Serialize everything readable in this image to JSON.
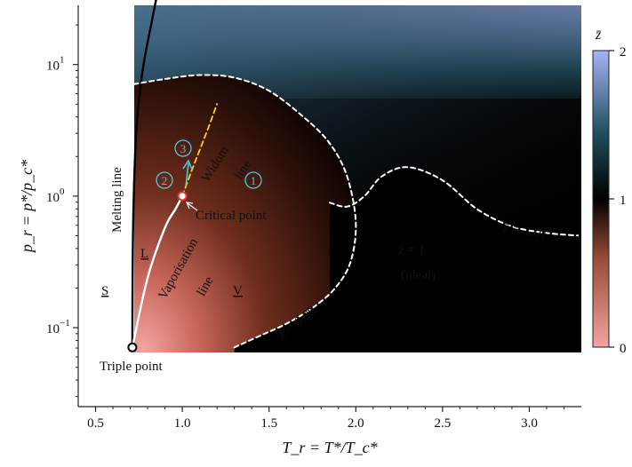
{
  "chart_data": {
    "type": "heatmap",
    "title": "",
    "xlabel": "T_r = T*/T_c*",
    "ylabel": "p_r = p*/p_c*",
    "xlim": [
      0.4,
      3.3
    ],
    "ylim_log10": [
      -1.6,
      1.45
    ],
    "yscale": "log",
    "x_ticks": [
      0.5,
      1.0,
      1.5,
      2.0,
      2.5,
      3.0
    ],
    "x_tick_labels": [
      "0.5",
      "1.0",
      "1.5",
      "2.0",
      "2.5",
      "3.0"
    ],
    "y_ticks_log10": [
      -1,
      0,
      1
    ],
    "y_tick_labels": [
      {
        "base": "10",
        "exp": "−1"
      },
      {
        "base": "10",
        "exp": "0"
      },
      {
        "base": "10",
        "exp": "1"
      }
    ],
    "colorbar": {
      "label": "z̄",
      "ticks": [
        0,
        1,
        2
      ],
      "tick_labels": [
        "0",
        "1",
        "2"
      ],
      "colors": {
        "low": "#f4a3a3",
        "mid_low": "#4a1a10",
        "one": "#000000",
        "mid_high": "#1e4e5e",
        "high": "#a7b4f7"
      }
    },
    "curves": {
      "melting_line": {
        "color": "#000000",
        "style": "solid",
        "x": [
          0.712,
          0.714,
          0.72,
          0.735,
          0.76,
          0.79,
          0.82,
          0.85
        ],
        "log10_p": [
          -1.15,
          -0.5,
          0,
          0.5,
          0.85,
          1.1,
          1.3,
          1.5
        ]
      },
      "vaporisation_line": {
        "color": "#ffffff",
        "style": "solid",
        "x": [
          0.712,
          0.8,
          0.9,
          0.96,
          1.0
        ],
        "log10_p": [
          -1.15,
          -0.62,
          -0.24,
          -0.1,
          0
        ]
      },
      "z_0_99": {
        "label": "z̄ = 0.99",
        "color": "#ffffff",
        "style": "dashed",
        "x": [
          0.72,
          0.9,
          1.1,
          1.3,
          1.5,
          1.7,
          1.85,
          1.95,
          2.0,
          1.97,
          1.88,
          1.75,
          1.6,
          1.45,
          1.3
        ],
        "log10_p": [
          0.85,
          0.89,
          0.92,
          0.9,
          0.8,
          0.6,
          0.4,
          0.15,
          -0.2,
          -0.5,
          -0.7,
          -0.85,
          -0.97,
          -1.06,
          -1.15
        ]
      },
      "z_1_01": {
        "label": "z̄ = 1.01",
        "color": "#ffffff",
        "style": "dashed",
        "x": [
          1.85,
          1.95,
          2.05,
          2.15,
          2.3,
          2.5,
          2.7,
          2.9,
          3.1,
          3.28
        ],
        "log10_p": [
          -0.05,
          -0.08,
          0,
          0.15,
          0.22,
          0.12,
          -0.1,
          -0.23,
          -0.28,
          -0.3
        ]
      },
      "widom_line": {
        "label": "Widom line",
        "color": "#ffd21a",
        "style": "dashed",
        "x": [
          1.0,
          1.05,
          1.1,
          1.15,
          1.2
        ],
        "log10_p": [
          0,
          0.18,
          0.35,
          0.52,
          0.7
        ]
      }
    },
    "points": {
      "triple_point": {
        "label": "Triple point",
        "x": 0.712,
        "log10_p": -1.15
      },
      "critical_point": {
        "label": "Critical point",
        "x": 1.0,
        "log10_p": 0
      }
    },
    "annotations": {
      "melting_line": "Melting line",
      "vaporisation_line": "Vaporisation line",
      "vaporisation_word1": "Vaporisation",
      "vaporisation_word2": "line",
      "widom_word1": "Widom",
      "widom_word2": "line",
      "phase_s": "S",
      "phase_l": "L",
      "phase_v": "V",
      "ideal_line1": "z̄ = 1",
      "ideal_line2": "(ideal)",
      "z_low": "z̄ = 0.99",
      "z_high": "z̄ = 1.01",
      "circle_1": "1",
      "circle_2": "2",
      "circle_3": "3"
    },
    "regions": {
      "ideal_region": {
        "label": "z̄ = 1 (ideal)",
        "color": "#000000"
      }
    },
    "grid": false,
    "legend": "none"
  }
}
